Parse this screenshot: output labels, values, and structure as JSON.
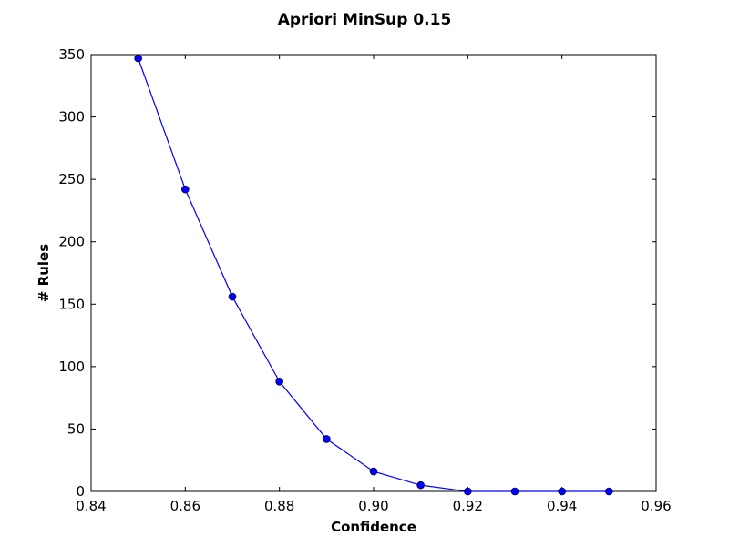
{
  "chart_data": {
    "type": "line",
    "title": "Apriori MinSup 0.15",
    "xlabel": "Confidence",
    "ylabel": "# Rules",
    "xlim": [
      0.84,
      0.96
    ],
    "ylim": [
      0,
      350
    ],
    "x_ticks": [
      "0.84",
      "0.86",
      "0.88",
      "0.90",
      "0.92",
      "0.94",
      "0.96"
    ],
    "y_ticks": [
      "0",
      "50",
      "100",
      "150",
      "200",
      "250",
      "300",
      "350"
    ],
    "grid": false,
    "series": [
      {
        "color": "#0000ff",
        "x": [
          0.85,
          0.86,
          0.87,
          0.88,
          0.89,
          0.9,
          0.91,
          0.92,
          0.93,
          0.94,
          0.95
        ],
        "y": [
          347,
          242,
          156,
          88,
          42,
          16,
          5,
          0,
          0,
          0,
          0
        ]
      }
    ]
  }
}
